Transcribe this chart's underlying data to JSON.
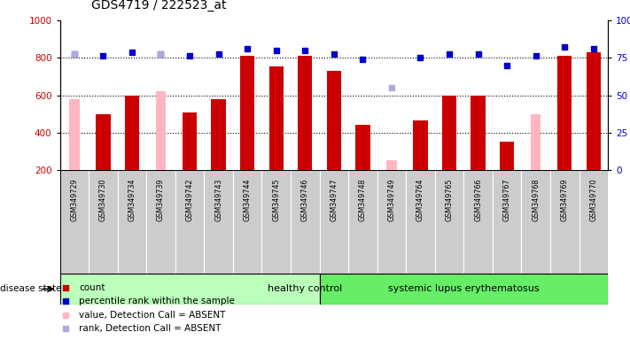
{
  "title": "GDS4719 / 222523_at",
  "samples": [
    "GSM349729",
    "GSM349730",
    "GSM349734",
    "GSM349739",
    "GSM349742",
    "GSM349743",
    "GSM349744",
    "GSM349745",
    "GSM349746",
    "GSM349747",
    "GSM349748",
    "GSM349749",
    "GSM349764",
    "GSM349765",
    "GSM349766",
    "GSM349767",
    "GSM349768",
    "GSM349769",
    "GSM349770"
  ],
  "count_values": [
    null,
    500,
    600,
    null,
    510,
    580,
    810,
    755,
    810,
    730,
    440,
    null,
    465,
    600,
    600,
    350,
    null,
    810,
    830
  ],
  "absent_value": [
    580,
    null,
    null,
    620,
    null,
    null,
    null,
    null,
    null,
    null,
    null,
    250,
    null,
    null,
    null,
    null,
    500,
    null,
    null
  ],
  "percentile_rank": [
    820,
    810,
    830,
    820,
    810,
    820,
    850,
    840,
    840,
    820,
    790,
    null,
    800,
    820,
    820,
    760,
    810,
    860,
    850
  ],
  "absent_rank": [
    820,
    null,
    null,
    820,
    null,
    null,
    null,
    null,
    null,
    null,
    null,
    640,
    null,
    null,
    null,
    null,
    null,
    null,
    null
  ],
  "n_healthy": 9,
  "ylim": [
    200,
    1000
  ],
  "yticks_left": [
    200,
    400,
    600,
    800,
    1000
  ],
  "yticks_right": [
    0,
    25,
    50,
    75,
    100
  ],
  "bar_color_red": "#CC0000",
  "bar_color_pink": "#FFB6C1",
  "dot_color_blue": "#0000CC",
  "dot_color_lightblue": "#AAAADD",
  "healthy_bg": "#BBFFBB",
  "lupus_bg": "#66EE66",
  "cell_bg": "#CCCCCC",
  "bar_width": 0.5,
  "disease_state_label": "disease state",
  "healthy_label": "healthy control",
  "lupus_label": "systemic lupus erythematosus",
  "legend_count": "count",
  "legend_rank": "percentile rank within the sample",
  "legend_absent_value": "value, Detection Call = ABSENT",
  "legend_absent_rank": "rank, Detection Call = ABSENT"
}
